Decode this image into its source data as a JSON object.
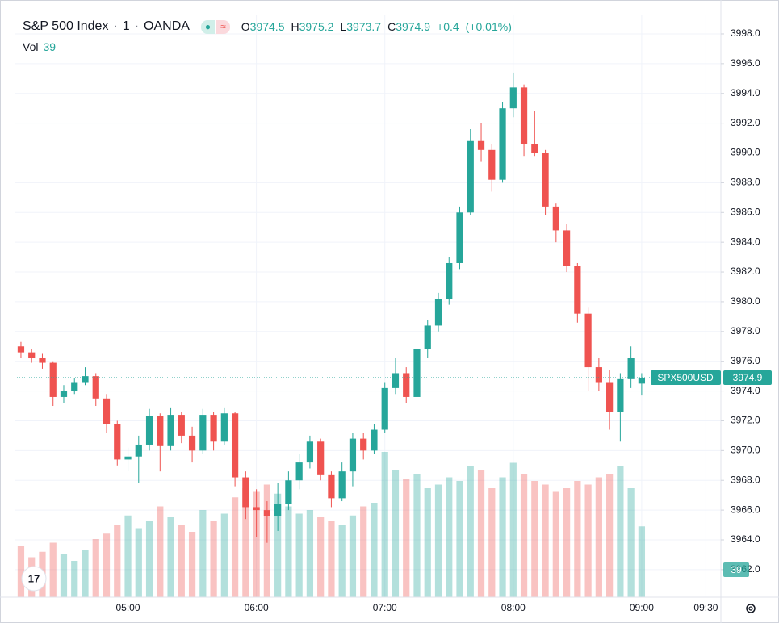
{
  "chart_data": {
    "type": "candlestick",
    "title": "S&P 500 Index",
    "interval": "1",
    "source": "OANDA",
    "symbol": "SPX500USD",
    "volume_label": "Vol",
    "ohlc_labels": {
      "open": "O",
      "high": "H",
      "low": "L",
      "close": "C"
    },
    "change": "+0.4",
    "change_pct": "(+0.01%)",
    "up_color": "#26a69a",
    "down_color": "#ef5350",
    "grid": true,
    "x": [
      "04:10",
      "04:15",
      "04:20",
      "04:25",
      "04:30",
      "04:35",
      "04:40",
      "04:45",
      "04:50",
      "04:55",
      "05:00",
      "05:05",
      "05:10",
      "05:15",
      "05:20",
      "05:25",
      "05:30",
      "05:35",
      "05:40",
      "05:45",
      "05:50",
      "05:55",
      "06:00",
      "06:05",
      "06:10",
      "06:15",
      "06:20",
      "06:25",
      "06:30",
      "06:35",
      "06:40",
      "06:45",
      "06:50",
      "06:55",
      "07:00",
      "07:05",
      "07:10",
      "07:15",
      "07:20",
      "07:25",
      "07:30",
      "07:35",
      "07:40",
      "07:45",
      "07:50",
      "07:55",
      "08:00",
      "08:05",
      "08:10",
      "08:15",
      "08:20",
      "08:25",
      "08:30",
      "08:35",
      "08:40",
      "08:45",
      "08:50",
      "08:55",
      "09:00"
    ],
    "open": [
      3977.0,
      3976.6,
      3976.2,
      3975.9,
      3973.6,
      3974.0,
      3974.6,
      3975.0,
      3973.5,
      3971.8,
      3969.4,
      3969.6,
      3970.4,
      3972.3,
      3970.3,
      3972.4,
      3971.0,
      3970.0,
      3972.4,
      3970.6,
      3972.5,
      3968.2,
      3966.2,
      3966.0,
      3965.6,
      3966.4,
      3968.0,
      3969.2,
      3970.6,
      3968.4,
      3966.8,
      3968.6,
      3970.8,
      3970.0,
      3971.4,
      3974.2,
      3975.2,
      3973.6,
      3976.8,
      3978.4,
      3980.2,
      3982.6,
      3986.0,
      3990.8,
      3990.2,
      3988.2,
      3993.0,
      3994.4,
      3990.6,
      3990.0,
      3986.4,
      3984.8,
      3982.4,
      3979.2,
      3975.6,
      3974.6,
      3972.6,
      3974.8,
      3974.5
    ],
    "high": [
      3977.3,
      3976.8,
      3976.5,
      3976.0,
      3974.4,
      3974.9,
      3975.6,
      3975.2,
      3973.8,
      3972.0,
      3970.2,
      3971.0,
      3972.8,
      3972.5,
      3972.9,
      3972.6,
      3971.6,
      3972.8,
      3972.6,
      3972.9,
      3972.6,
      3968.6,
      3967.4,
      3966.6,
      3967.8,
      3968.6,
      3969.8,
      3971.0,
      3970.8,
      3968.6,
      3969.2,
      3971.2,
      3971.2,
      3971.8,
      3974.6,
      3976.2,
      3975.6,
      3977.2,
      3978.8,
      3980.6,
      3983.0,
      3986.4,
      3991.6,
      3992.0,
      3990.6,
      3993.4,
      3995.4,
      3994.6,
      3992.8,
      3990.2,
      3986.6,
      3985.2,
      3982.6,
      3979.6,
      3976.2,
      3975.4,
      3975.2,
      3977.0,
      3975.2
    ],
    "low": [
      3976.2,
      3975.9,
      3975.5,
      3973.0,
      3973.2,
      3973.8,
      3974.4,
      3973.0,
      3971.2,
      3969.0,
      3968.6,
      3967.8,
      3970.0,
      3968.6,
      3970.0,
      3970.5,
      3969.2,
      3969.8,
      3970.0,
      3970.4,
      3967.6,
      3965.4,
      3964.2,
      3963.8,
      3964.6,
      3966.0,
      3967.4,
      3968.8,
      3968.0,
      3966.2,
      3966.6,
      3967.6,
      3969.4,
      3969.8,
      3971.2,
      3973.8,
      3973.2,
      3973.4,
      3976.2,
      3978.0,
      3979.8,
      3982.2,
      3985.8,
      3989.4,
      3987.4,
      3988.0,
      3992.4,
      3989.8,
      3989.8,
      3985.8,
      3984.0,
      3982.0,
      3978.6,
      3974.0,
      3974.0,
      3971.4,
      3970.6,
      3974.2,
      3973.7
    ],
    "close": [
      3976.6,
      3976.2,
      3975.9,
      3973.6,
      3974.0,
      3974.6,
      3975.0,
      3973.5,
      3971.8,
      3969.4,
      3969.6,
      3970.4,
      3972.3,
      3970.3,
      3972.4,
      3971.0,
      3970.0,
      3972.4,
      3970.6,
      3972.5,
      3968.2,
      3966.2,
      3966.0,
      3965.6,
      3966.4,
      3968.0,
      3969.2,
      3970.6,
      3968.4,
      3966.8,
      3968.6,
      3970.8,
      3970.0,
      3971.4,
      3974.2,
      3975.2,
      3973.6,
      3976.8,
      3978.4,
      3980.2,
      3982.6,
      3986.0,
      3990.8,
      3990.2,
      3988.2,
      3993.0,
      3994.4,
      3990.6,
      3990.0,
      3986.4,
      3984.8,
      3982.4,
      3979.2,
      3975.6,
      3974.6,
      3972.6,
      3974.8,
      3976.2,
      3974.9
    ],
    "volume": [
      28,
      22,
      25,
      30,
      24,
      20,
      26,
      32,
      35,
      40,
      45,
      38,
      42,
      50,
      44,
      40,
      36,
      48,
      42,
      46,
      55,
      60,
      58,
      62,
      57,
      50,
      46,
      48,
      44,
      42,
      40,
      45,
      50,
      52,
      80,
      70,
      65,
      68,
      60,
      62,
      66,
      64,
      72,
      70,
      60,
      66,
      74,
      68,
      64,
      62,
      58,
      60,
      64,
      62,
      66,
      68,
      72,
      60,
      39
    ],
    "ylim": [
      3960.15,
      3999.3
    ],
    "yticks": [
      {
        "value": 3962,
        "label": "3962.0"
      },
      {
        "value": 3964,
        "label": "3964.0"
      },
      {
        "value": 3966,
        "label": "3966.0"
      },
      {
        "value": 3968,
        "label": "3968.0"
      },
      {
        "value": 3970,
        "label": "3970.0"
      },
      {
        "value": 3972,
        "label": "3972.0"
      },
      {
        "value": 3974,
        "label": "3974.0"
      },
      {
        "value": 3976,
        "label": "3976.0"
      },
      {
        "value": 3978,
        "label": "3978.0"
      },
      {
        "value": 3980,
        "label": "3980.0"
      },
      {
        "value": 3982,
        "label": "3982.0"
      },
      {
        "value": 3984,
        "label": "3984.0"
      },
      {
        "value": 3986,
        "label": "3986.0"
      },
      {
        "value": 3988,
        "label": "3988.0"
      },
      {
        "value": 3990,
        "label": "3990.0"
      },
      {
        "value": 3992,
        "label": "3992.0"
      },
      {
        "value": 3994,
        "label": "3994.0"
      },
      {
        "value": 3996,
        "label": "3996.0"
      },
      {
        "value": 3998,
        "label": "3998.0"
      }
    ],
    "xlim": [
      "04:07",
      "09:37"
    ],
    "xticks": [
      "05:00",
      "06:00",
      "07:00",
      "08:00",
      "09:00",
      "09:30"
    ]
  }
}
